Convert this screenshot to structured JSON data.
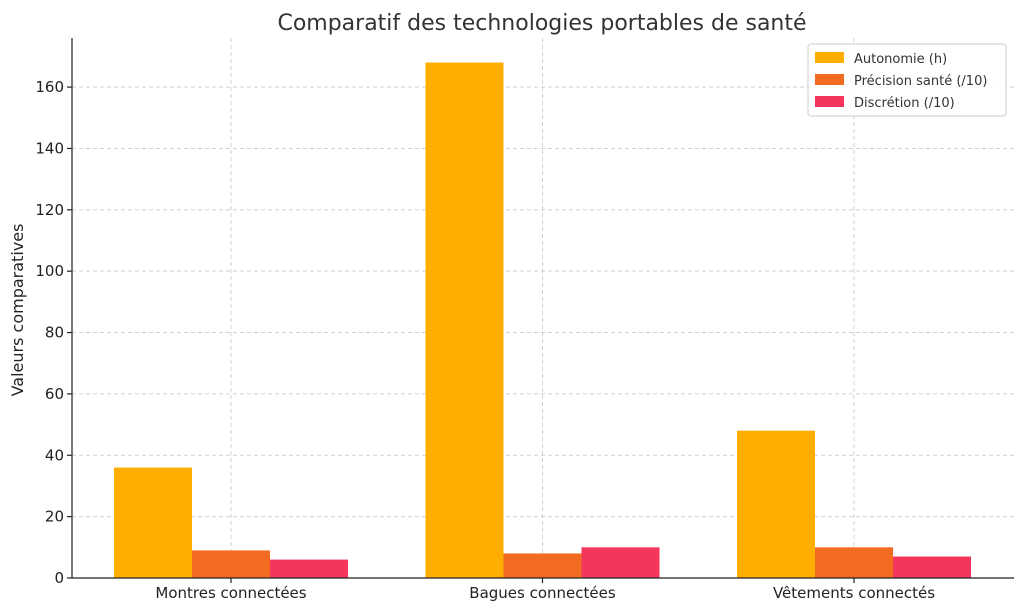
{
  "chart_data": {
    "type": "bar",
    "title": "Comparatif des technologies portables de santé",
    "xlabel": "",
    "ylabel": "Valeurs comparatives",
    "categories": [
      "Montres connectées",
      "Bagues connectées",
      "Vêtements connectés"
    ],
    "series": [
      {
        "name": "Autonomie (h)",
        "color": "#FFAE00",
        "values": [
          36,
          168,
          48
        ]
      },
      {
        "name": "Précision santé (/10)",
        "color": "#F26B21",
        "values": [
          9,
          8,
          10
        ]
      },
      {
        "name": "Discrétion (/10)",
        "color": "#F5365C",
        "values": [
          6,
          10,
          7
        ]
      }
    ],
    "ylim": [
      0,
      176
    ],
    "yticks": [
      0,
      20,
      40,
      60,
      80,
      100,
      120,
      140,
      160
    ],
    "grid": true,
    "legend_position": "top-right"
  }
}
